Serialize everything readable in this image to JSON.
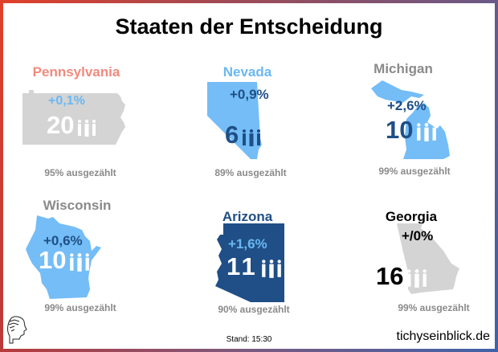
{
  "title": "Staaten der Entscheidung",
  "states": [
    {
      "name": "Pennsylvania",
      "margin": "+0,1%",
      "electoral_votes": "20",
      "counted": "95% ausgezählt",
      "name_color": "#f08a7e",
      "shape_color": "#d4d4d4",
      "margin_color": "#6ab8f2",
      "votes_color": "#ffffff",
      "people_icon": "person-icon"
    },
    {
      "name": "Nevada",
      "margin": "+0,9%",
      "electoral_votes": "6",
      "counted": "89% ausgezählt",
      "name_color": "#6ab8f2",
      "shape_color": "#74bdf7",
      "margin_color": "#1f4f86",
      "votes_color": "#1f4f86",
      "people_icon": "person-icon"
    },
    {
      "name": "Michigan",
      "margin": "+2,6%",
      "electoral_votes": "10",
      "counted": "99% ausgezählt",
      "name_color": "#8a8a8a",
      "shape_color": "#74bdf7",
      "margin_color": "#1f4f86",
      "votes_color": "#1f4f86",
      "people_icon": "person-icon"
    },
    {
      "name": "Wisconsin",
      "margin": "+0,6%",
      "electoral_votes": "10",
      "counted": "99% ausgezählt",
      "name_color": "#8a8a8a",
      "shape_color": "#74bdf7",
      "margin_color": "#1f4f86",
      "votes_color": "#ffffff",
      "people_icon": "person-icon"
    },
    {
      "name": "Arizona",
      "margin": "+1,6%",
      "electoral_votes": "11",
      "counted": "90% ausgezählt",
      "name_color": "#1f4f86",
      "shape_color": "#1f4f86",
      "margin_color": "#6ab8f2",
      "votes_color": "#ffffff",
      "people_icon": "person-icon"
    },
    {
      "name": "Georgia",
      "margin": "+/0%",
      "electoral_votes": "16",
      "counted": "99% ausgezählt",
      "name_color": "#000000",
      "shape_color": "#d4d4d4",
      "margin_color": "#000000",
      "votes_color": "#000000",
      "people_icon": "person-icon"
    }
  ],
  "footer": {
    "stand": "Stand: 15:30",
    "site": "tichyseinblick.de",
    "logo_icon": "head-profile-icon"
  }
}
